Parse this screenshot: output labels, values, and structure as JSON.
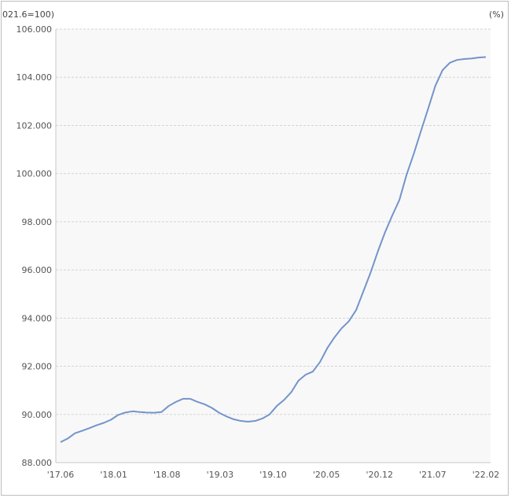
{
  "chart_data": {
    "type": "line",
    "title": "",
    "left_unit_label": "021.6=100)",
    "right_unit_label": "(%)",
    "xlabel": "",
    "ylabel": "",
    "ylim": [
      88,
      106
    ],
    "y_ticks": [
      "88.000",
      "90.000",
      "92.000",
      "94.000",
      "96.000",
      "98.000",
      "100.000",
      "102.000",
      "104.000",
      "106.000"
    ],
    "x_ticks": [
      "'17.06",
      "'18.01",
      "'18.08",
      "'19.03",
      "'19.10",
      "'20.05",
      "'20.12",
      "'21.07",
      "'22.02"
    ],
    "grid": true,
    "line_color": "#7394cb",
    "series": [
      {
        "values": [
          88.85,
          89.0,
          89.22,
          89.32,
          89.43,
          89.55,
          89.65,
          89.78,
          89.98,
          90.08,
          90.13,
          90.1,
          90.08,
          90.07,
          90.1,
          90.35,
          90.52,
          90.65,
          90.65,
          90.52,
          90.42,
          90.27,
          90.07,
          89.92,
          89.8,
          89.73,
          89.7,
          89.73,
          89.83,
          90.0,
          90.35,
          90.6,
          90.92,
          91.4,
          91.65,
          91.78,
          92.18,
          92.75,
          93.2,
          93.58,
          93.87,
          94.33,
          95.1,
          95.88,
          96.75,
          97.55,
          98.25,
          98.9,
          99.95,
          100.82,
          101.77,
          102.7,
          103.65,
          104.3,
          104.6,
          104.72,
          104.76,
          104.78,
          104.82,
          104.84
        ]
      }
    ]
  }
}
